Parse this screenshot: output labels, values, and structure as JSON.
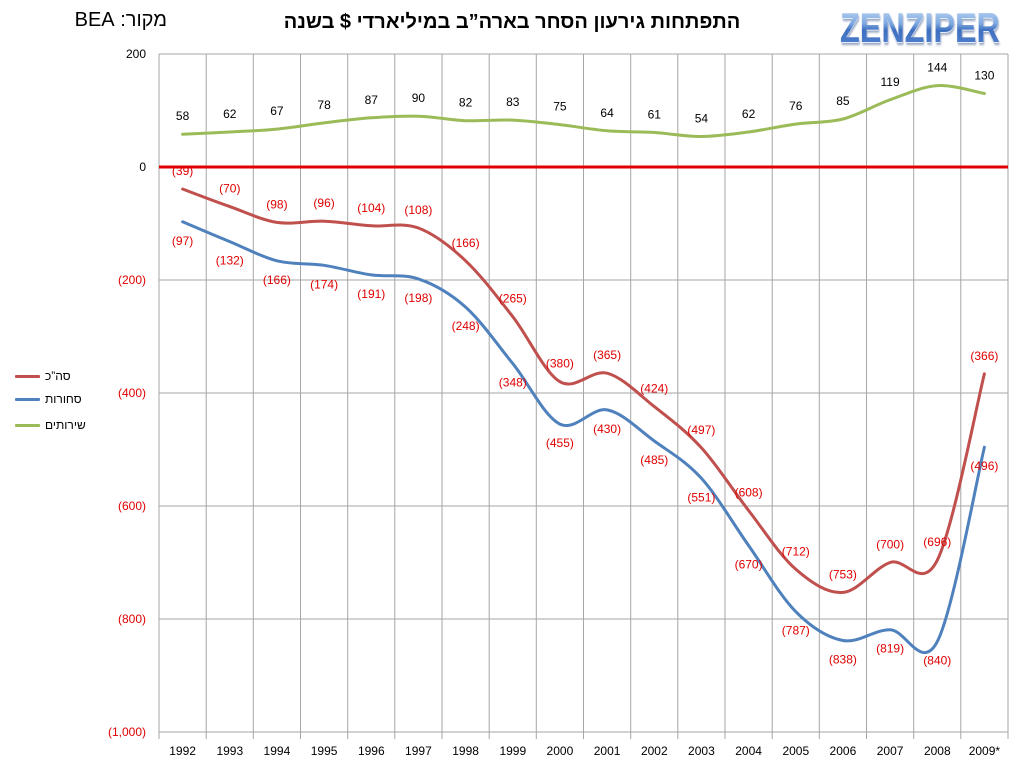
{
  "header": {
    "source": "מקור: BEA",
    "logo": "ZENZIPER"
  },
  "chart_data": {
    "type": "line",
    "title": "התפתחות גירעון הסחר בארה”ב במיליארדי $ בשנה",
    "xlabel": "",
    "ylabel": "",
    "ylim": [
      -1000,
      200
    ],
    "grid": true,
    "smoothed": true,
    "legend": "left",
    "zero_line_color": "#e00000",
    "negative_label_color": "#e00000",
    "categories": [
      "1992",
      "1993",
      "1994",
      "1995",
      "1996",
      "1997",
      "1998",
      "1999",
      "2000",
      "2001",
      "2002",
      "2003",
      "2004",
      "2005",
      "2006",
      "2007",
      "2008",
      "2009*"
    ],
    "yticks": [
      {
        "value": 200,
        "label": "200"
      },
      {
        "value": 0,
        "label": "0"
      },
      {
        "value": -200,
        "label": "(200)"
      },
      {
        "value": -400,
        "label": "(400)"
      },
      {
        "value": -600,
        "label": "(600)"
      },
      {
        "value": -800,
        "label": "(800)"
      },
      {
        "value": -1000,
        "label": "(1,000)"
      }
    ],
    "series": [
      {
        "name": "סה”כ",
        "color": "#c0504d",
        "label_color": "#e00000",
        "label_position": "above",
        "values": [
          -39,
          -70,
          -98,
          -96,
          -104,
          -108,
          -166,
          -265,
          -380,
          -365,
          -424,
          -497,
          -608,
          -712,
          -753,
          -700,
          -696,
          -366
        ],
        "labels": [
          "(39)",
          "(70)",
          "(98)",
          "(96)",
          "(104)",
          "(108)",
          "(166)",
          "(265)",
          "(380)",
          "(365)",
          "(424)",
          "(497)",
          "(608)",
          "(712)",
          "(753)",
          "(700)",
          "(696)",
          "(366)"
        ]
      },
      {
        "name": "סחורות",
        "color": "#4f81bd",
        "label_color": "#e00000",
        "label_position": "below",
        "values": [
          -97,
          -132,
          -166,
          -174,
          -191,
          -198,
          -248,
          -348,
          -455,
          -430,
          -485,
          -551,
          -670,
          -787,
          -838,
          -819,
          -840,
          -496
        ],
        "labels": [
          "(97)",
          "(132)",
          "(166)",
          "(174)",
          "(191)",
          "(198)",
          "(248)",
          "(348)",
          "(455)",
          "(430)",
          "(485)",
          "(551)",
          "(670)",
          "(787)",
          "(838)",
          "(819)",
          "(840)",
          "(496)"
        ]
      },
      {
        "name": "שירותים",
        "color": "#9bbb59",
        "label_color": "#000000",
        "label_position": "above",
        "values": [
          58,
          62,
          67,
          78,
          87,
          90,
          82,
          83,
          75,
          64,
          61,
          54,
          62,
          76,
          85,
          119,
          144,
          130
        ],
        "labels": [
          "58",
          "62",
          "67",
          "78",
          "87",
          "90",
          "82",
          "83",
          "75",
          "64",
          "61",
          "54",
          "62",
          "76",
          "85",
          "119",
          "144",
          "130"
        ]
      }
    ]
  }
}
